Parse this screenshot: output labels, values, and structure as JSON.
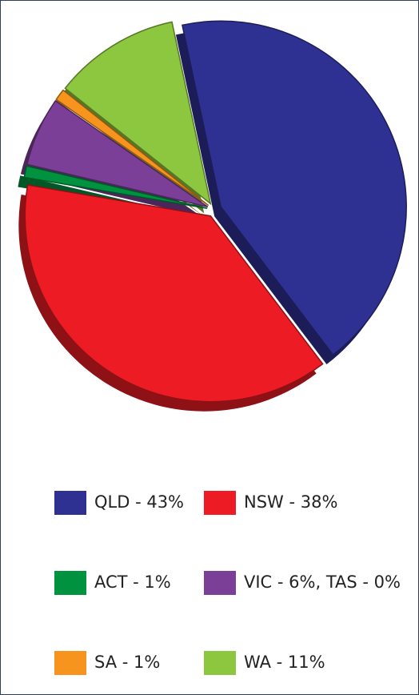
{
  "chart_data": {
    "type": "pie",
    "categories": [
      "QLD - 43%",
      "NSW - 38%",
      "ACT - 1%",
      "VIC - 6%, TAS - 0%",
      "SA - 1%",
      "WA - 11%"
    ],
    "values": [
      43,
      38,
      1,
      6,
      1,
      11
    ],
    "colors": [
      "#2e3192",
      "#ed1c24",
      "#00923f",
      "#7b3f98",
      "#f7941d",
      "#8dc63f"
    ]
  }
}
